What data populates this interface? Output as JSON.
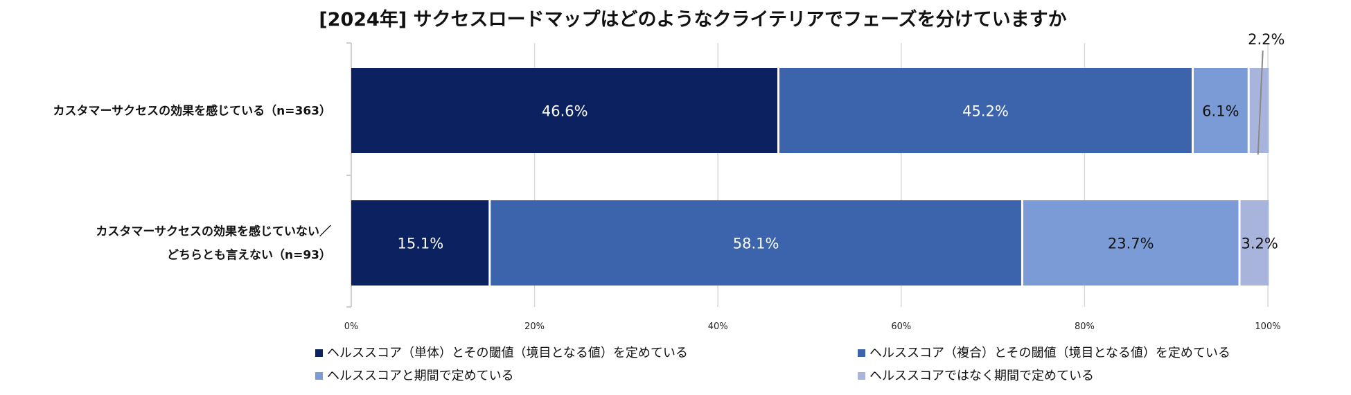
{
  "chart_data": {
    "type": "bar",
    "orientation": "horizontal",
    "stacked": true,
    "percent": true,
    "title": "[2024年] サクセスロードマップはどのようなクライテリアでフェーズを分けていますか",
    "categories": [
      [
        "カスタマーサクセスの効果を感じている（n=363）"
      ],
      [
        "カスタマーサクセスの効果を感じていない／",
        "どちらとも言えない（n=93）"
      ]
    ],
    "series": [
      {
        "name": "ヘルススコア（単体）とその閾値（境目となる値）を定めている",
        "color": "#0b2160",
        "label_color": "#ffffff",
        "values": [
          46.6,
          15.1
        ],
        "labels": [
          "46.6%",
          "15.1%"
        ]
      },
      {
        "name": "ヘルススコア（複合）とその閾値（境目となる値）を定めている",
        "color": "#3c64ac",
        "label_color": "#ffffff",
        "values": [
          45.2,
          58.1
        ],
        "labels": [
          "45.2%",
          "58.1%"
        ]
      },
      {
        "name": "ヘルススコアと期間で定めている",
        "color": "#7b9bd6",
        "label_color": "#111111",
        "values": [
          6.1,
          23.7
        ],
        "labels": [
          "6.1%",
          "23.7%"
        ]
      },
      {
        "name": "ヘルススコアではなく期間で定めている",
        "color": "#a8b4dc",
        "label_color": "#111111",
        "values": [
          2.2,
          3.2
        ],
        "labels": [
          "2.2%",
          "3.2%"
        ]
      }
    ],
    "xlim": [
      0,
      100
    ],
    "xticks": [
      "0%",
      "20%",
      "40%",
      "60%",
      "80%",
      "100%"
    ],
    "grid": true,
    "legend_position": "bottom",
    "colors": {
      "gridline": "#d9d9d9",
      "axis": "#bfbfbf"
    }
  }
}
